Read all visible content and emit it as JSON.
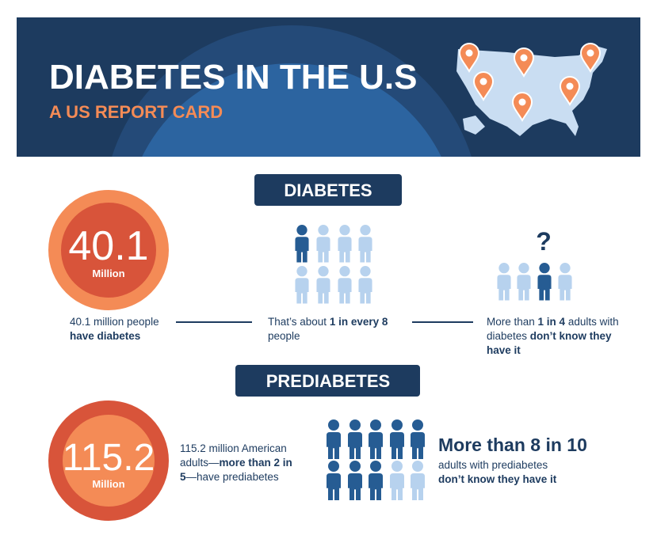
{
  "header": {
    "title": "DIABETES IN THE U.S",
    "subtitle": "A US REPORT CARD"
  },
  "diabetes": {
    "heading": "DIABETES",
    "stat": {
      "number": "40.1",
      "unit": "Million"
    },
    "facts": [
      [
        [
          {
            "t": "40.1 million people"
          }
        ],
        [
          {
            "t": "have diabetes",
            "b": true
          }
        ]
      ],
      [
        [
          {
            "t": "That’s about "
          },
          {
            "t": "1 in every 8",
            "b": true
          }
        ],
        [
          {
            "t": "people"
          }
        ]
      ],
      [
        [
          {
            "t": "More than "
          },
          {
            "t": "1 in 4",
            "b": true
          },
          {
            "t": " adults with"
          }
        ],
        [
          {
            "t": "diabetes "
          },
          {
            "t": "don’t know they",
            "b": true
          }
        ],
        [
          {
            "t": "have it",
            "b": true
          }
        ]
      ]
    ],
    "question": "?"
  },
  "prediabetes": {
    "heading": "PREDIABETES",
    "stat": {
      "number": "115.2",
      "unit": "Million"
    },
    "fact": [
      [
        {
          "t": "115.2 million American"
        }
      ],
      [
        {
          "t": "adults—"
        },
        {
          "t": "more than 2 in",
          "b": true
        }
      ],
      [
        {
          "t": "5",
          "b": true
        },
        {
          "t": "—have prediabetes"
        }
      ]
    ],
    "headline": "More than 8 in 10",
    "detail": [
      [
        {
          "t": "adults with prediabetes"
        }
      ],
      [
        {
          "t": "don’t know they have it",
          "b": true
        }
      ]
    ]
  }
}
